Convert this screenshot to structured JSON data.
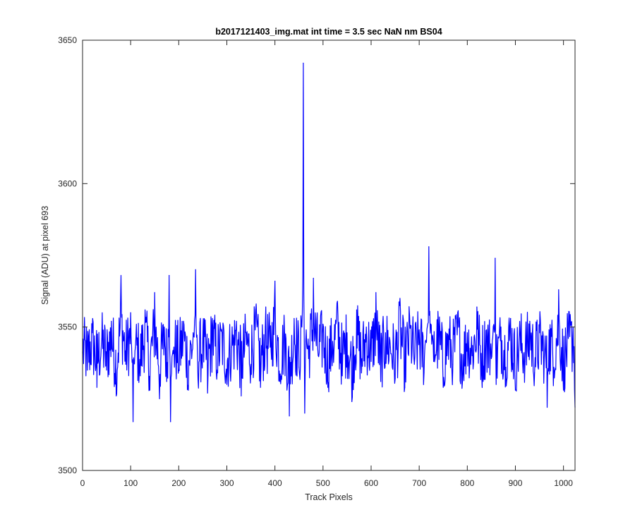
{
  "chart_data": {
    "type": "line",
    "title": "b2017121403_img.mat int time = 3.5 sec  NaN nm BS04",
    "xlabel": "Track Pixels",
    "ylabel": "Signal (ADU) at pixel 693",
    "xlim": [
      0,
      1024
    ],
    "ylim": [
      3500,
      3650
    ],
    "x_ticks": [
      0,
      100,
      200,
      300,
      400,
      500,
      600,
      700,
      800,
      900,
      1000
    ],
    "y_ticks": [
      3500,
      3550,
      3600,
      3650
    ],
    "grid": false,
    "legend": "none",
    "series": [
      {
        "color": "#0000ff",
        "x": [
          0,
          10,
          20,
          30,
          40,
          50,
          60,
          70,
          80,
          90,
          100,
          105,
          110,
          120,
          130,
          140,
          150,
          160,
          170,
          175,
          180,
          183,
          190,
          200,
          210,
          220,
          230,
          235,
          240,
          250,
          260,
          270,
          280,
          290,
          300,
          310,
          320,
          330,
          340,
          350,
          360,
          370,
          380,
          390,
          400,
          410,
          420,
          430,
          440,
          450,
          456,
          459,
          462,
          465,
          470,
          480,
          490,
          500,
          510,
          520,
          530,
          540,
          550,
          560,
          570,
          580,
          590,
          600,
          610,
          620,
          630,
          640,
          650,
          660,
          670,
          680,
          690,
          700,
          710,
          720,
          730,
          740,
          750,
          760,
          770,
          780,
          790,
          800,
          810,
          820,
          830,
          840,
          850,
          858,
          860,
          870,
          880,
          890,
          900,
          910,
          920,
          930,
          940,
          950,
          960,
          966,
          970,
          980,
          990,
          1000,
          1010,
          1020,
          1024
        ],
        "y": [
          3541,
          3535,
          3548,
          3529,
          3546,
          3535,
          3552,
          3526,
          3568,
          3537,
          3555,
          3517,
          3543,
          3533,
          3556,
          3528,
          3562,
          3525,
          3550,
          3531,
          3568,
          3517,
          3543,
          3535,
          3552,
          3528,
          3548,
          3570,
          3532,
          3546,
          3527,
          3553,
          3535,
          3548,
          3530,
          3543,
          3552,
          3526,
          3548,
          3537,
          3556,
          3529,
          3550,
          3543,
          3566,
          3531,
          3548,
          3519,
          3553,
          3536,
          3550,
          3642,
          3520,
          3549,
          3539,
          3567,
          3540,
          3551,
          3529,
          3545,
          3559,
          3533,
          3548,
          3524,
          3556,
          3534,
          3550,
          3538,
          3562,
          3531,
          3548,
          3543,
          3532,
          3560,
          3529,
          3554,
          3537,
          3549,
          3534,
          3578,
          3538,
          3551,
          3529,
          3547,
          3537,
          3555,
          3531,
          3548,
          3540,
          3557,
          3533,
          3549,
          3539,
          3574,
          3530,
          3550,
          3536,
          3553,
          3528,
          3547,
          3538,
          3552,
          3534,
          3548,
          3539,
          3522,
          3549,
          3536,
          3563,
          3528,
          3546,
          3550,
          3522
        ]
      }
    ]
  }
}
